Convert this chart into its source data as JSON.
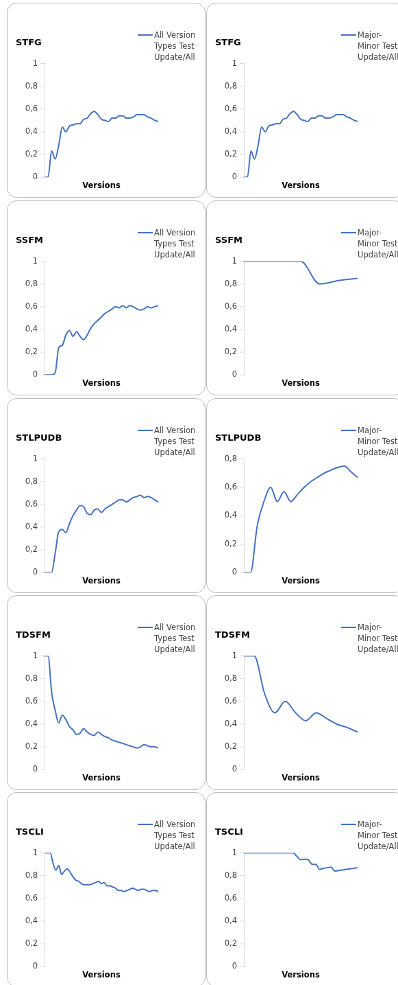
{
  "chart_data": [
    {
      "type": "line",
      "title": "STFG",
      "xlabel": "Versions",
      "legend": "top right",
      "marker": "none",
      "tick_labels": "y",
      "ylim": [
        0,
        1
      ],
      "yticks": [
        {
          "value": 0,
          "label": "0"
        },
        {
          "value": 0.2,
          "label": "0,2"
        },
        {
          "value": 0.4,
          "label": "0,4"
        },
        {
          "value": 0.6,
          "label": "0,6"
        },
        {
          "value": 0.8,
          "label": "0,8"
        },
        {
          "value": 1,
          "label": "1"
        }
      ],
      "categories": [
        null,
        null,
        null,
        null,
        null,
        null,
        null,
        null,
        null,
        null,
        null,
        null,
        null,
        null,
        null,
        null,
        null,
        null,
        null,
        null,
        null,
        null,
        null,
        null,
        null,
        null,
        null,
        null,
        null,
        null,
        null,
        null,
        null
      ],
      "series": [
        {
          "name": "All Version Types Test Update/All",
          "color": "#4472c4",
          "values": [
            0,
            0,
            0.23,
            0.16,
            0.28,
            0.44,
            0.4,
            0.45,
            0.46,
            0.47,
            0.47,
            0.51,
            0.52,
            0.56,
            0.58,
            0.55,
            0.51,
            0.5,
            0.49,
            0.52,
            0.52,
            0.54,
            0.54,
            0.52,
            0.52,
            0.53,
            0.55,
            0.55,
            0.55,
            0.53,
            0.52,
            0.5,
            0.49
          ]
        }
      ]
    },
    {
      "type": "line",
      "title": "STFG",
      "xlabel": "Versions",
      "legend": "top right",
      "marker": "none",
      "tick_labels": "y",
      "ylim": [
        0,
        1
      ],
      "yticks": [
        {
          "value": 0,
          "label": "0"
        },
        {
          "value": 0.2,
          "label": "0,2"
        },
        {
          "value": 0.4,
          "label": "0,4"
        },
        {
          "value": 0.6,
          "label": "0,6"
        },
        {
          "value": 0.8,
          "label": "0,8"
        },
        {
          "value": 1,
          "label": "1"
        }
      ],
      "categories": [
        null,
        null,
        null,
        null,
        null,
        null,
        null,
        null,
        null,
        null,
        null,
        null,
        null,
        null,
        null,
        null,
        null,
        null,
        null,
        null,
        null,
        null,
        null,
        null,
        null,
        null,
        null,
        null,
        null,
        null,
        null,
        null,
        null
      ],
      "series": [
        {
          "name": "Major-Minor Test Update/All",
          "color": "#4472c4",
          "values": [
            0,
            0,
            0.23,
            0.16,
            0.28,
            0.44,
            0.4,
            0.45,
            0.46,
            0.47,
            0.47,
            0.51,
            0.52,
            0.56,
            0.58,
            0.55,
            0.51,
            0.5,
            0.49,
            0.52,
            0.52,
            0.54,
            0.54,
            0.52,
            0.52,
            0.53,
            0.55,
            0.55,
            0.55,
            0.53,
            0.52,
            0.5,
            0.49
          ]
        }
      ]
    },
    {
      "type": "line",
      "title": "SSFM",
      "xlabel": "Versions",
      "legend": "top right",
      "marker": "none",
      "tick_labels": "y",
      "ylim": [
        0,
        1
      ],
      "yticks": [
        {
          "value": 0,
          "label": "0"
        },
        {
          "value": 0.2,
          "label": "0,2"
        },
        {
          "value": 0.4,
          "label": "0,4"
        },
        {
          "value": 0.6,
          "label": "0,6"
        },
        {
          "value": 0.8,
          "label": "0,8"
        },
        {
          "value": 1,
          "label": "1"
        }
      ],
      "categories": [
        null,
        null,
        null,
        null,
        null,
        null,
        null,
        null,
        null,
        null,
        null,
        null,
        null,
        null,
        null,
        null,
        null,
        null,
        null,
        null,
        null,
        null,
        null,
        null,
        null,
        null,
        null,
        null,
        null,
        null,
        null,
        null,
        null
      ],
      "series": [
        {
          "name": "All Version Types Test Update/All",
          "color": "#4472c4",
          "values": [
            0,
            0,
            0,
            0.02,
            0.24,
            0.26,
            0.35,
            0.39,
            0.34,
            0.38,
            0.34,
            0.31,
            0.35,
            0.41,
            0.45,
            0.48,
            0.51,
            0.54,
            0.56,
            0.58,
            0.6,
            0.59,
            0.61,
            0.59,
            0.61,
            0.6,
            0.58,
            0.57,
            0.58,
            0.6,
            0.59,
            0.6,
            0.61
          ]
        }
      ]
    },
    {
      "type": "line",
      "title": "SSFM",
      "xlabel": "Versions",
      "legend": "top right",
      "marker": "none",
      "tick_labels": "y",
      "ylim": [
        0,
        1
      ],
      "yticks": [
        {
          "value": 0,
          "label": "0"
        },
        {
          "value": 0.2,
          "label": "0,2"
        },
        {
          "value": 0.4,
          "label": "0,4"
        },
        {
          "value": 0.6,
          "label": "0,6"
        },
        {
          "value": 0.8,
          "label": "0,8"
        },
        {
          "value": 1,
          "label": "1"
        }
      ],
      "categories": [
        null,
        null,
        null,
        null,
        null,
        null,
        null
      ],
      "series": [
        {
          "name": "Major-Minor Test Update/All",
          "color": "#4472c4",
          "values": [
            1,
            1,
            1,
            1,
            0.8,
            0.83,
            0.85
          ]
        }
      ]
    },
    {
      "type": "line",
      "title": "STLPUDB",
      "xlabel": "Versions",
      "legend": "top right",
      "marker": "none",
      "tick_labels": "y",
      "ylim": [
        0,
        1
      ],
      "yticks": [
        {
          "value": 0,
          "label": "0"
        },
        {
          "value": 0.2,
          "label": "0,2"
        },
        {
          "value": 0.4,
          "label": "0,4"
        },
        {
          "value": 0.6,
          "label": "0,6"
        },
        {
          "value": 0.8,
          "label": "0,8"
        },
        {
          "value": 1,
          "label": "1"
        }
      ],
      "categories": [
        null,
        null,
        null,
        null,
        null,
        null,
        null,
        null,
        null,
        null,
        null,
        null,
        null,
        null,
        null,
        null,
        null,
        null,
        null,
        null,
        null,
        null,
        null,
        null,
        null,
        null,
        null,
        null,
        null,
        null,
        null,
        null,
        null
      ],
      "series": [
        {
          "name": "All Version Types Test Update/All",
          "color": "#4472c4",
          "values": [
            0,
            0,
            0,
            0.17,
            0.36,
            0.38,
            0.35,
            0.43,
            0.5,
            0.55,
            0.59,
            0.58,
            0.52,
            0.51,
            0.55,
            0.56,
            0.53,
            0.56,
            0.58,
            0.6,
            0.62,
            0.64,
            0.64,
            0.62,
            0.64,
            0.66,
            0.67,
            0.68,
            0.66,
            0.67,
            0.66,
            0.64,
            0.62
          ]
        }
      ]
    },
    {
      "type": "line",
      "title": "STLPUDB",
      "xlabel": "Versions",
      "legend": "top right",
      "marker": "none",
      "tick_labels": "y",
      "ylim": [
        0,
        0.8
      ],
      "yticks": [
        {
          "value": 0,
          "label": "0"
        },
        {
          "value": 0.2,
          "label": "0,2"
        },
        {
          "value": 0.4,
          "label": "0,4"
        },
        {
          "value": 0.6,
          "label": "0,6"
        },
        {
          "value": 0.8,
          "label": "0,8"
        }
      ],
      "categories": [
        null,
        null,
        null,
        null,
        null,
        null,
        null,
        null,
        null,
        null,
        null,
        null,
        null,
        null,
        null,
        null,
        null,
        null
      ],
      "series": [
        {
          "name": "Major-Minor Test Update/All",
          "color": "#4472c4",
          "values": [
            0,
            0,
            0.33,
            0.5,
            0.6,
            0.5,
            0.57,
            0.5,
            0.55,
            0.6,
            0.64,
            0.67,
            0.7,
            0.72,
            0.74,
            0.75,
            0.71,
            0.67
          ]
        }
      ]
    },
    {
      "type": "line",
      "title": "TDSFM",
      "xlabel": "Versions",
      "legend": "top right",
      "marker": "none",
      "tick_labels": "y",
      "ylim": [
        0,
        1
      ],
      "yticks": [
        {
          "value": 0,
          "label": "0"
        },
        {
          "value": 0.2,
          "label": "0,2"
        },
        {
          "value": 0.4,
          "label": "0,4"
        },
        {
          "value": 0.6,
          "label": "0,6"
        },
        {
          "value": 0.8,
          "label": "0,8"
        },
        {
          "value": 1,
          "label": "1"
        }
      ],
      "categories": [
        null,
        null,
        null,
        null,
        null,
        null,
        null,
        null,
        null,
        null,
        null,
        null,
        null,
        null,
        null,
        null,
        null,
        null,
        null,
        null,
        null,
        null,
        null,
        null,
        null,
        null,
        null,
        null,
        null,
        null,
        null,
        null,
        null
      ],
      "series": [
        {
          "name": "All Version Types Test Update/All",
          "color": "#4472c4",
          "values": [
            1,
            1,
            0.68,
            0.52,
            0.41,
            0.48,
            0.44,
            0.38,
            0.35,
            0.31,
            0.32,
            0.36,
            0.33,
            0.31,
            0.3,
            0.33,
            0.31,
            0.29,
            0.28,
            0.26,
            0.25,
            0.24,
            0.23,
            0.22,
            0.21,
            0.2,
            0.19,
            0.2,
            0.22,
            0.21,
            0.2,
            0.2,
            0.19
          ]
        }
      ]
    },
    {
      "type": "line",
      "title": "TDSFM",
      "xlabel": "Versions",
      "legend": "top right",
      "marker": "none",
      "tick_labels": "y",
      "ylim": [
        0,
        1
      ],
      "yticks": [
        {
          "value": 0,
          "label": "0"
        },
        {
          "value": 0.2,
          "label": "0,2"
        },
        {
          "value": 0.4,
          "label": "0,4"
        },
        {
          "value": 0.6,
          "label": "0,6"
        },
        {
          "value": 0.8,
          "label": "0,8"
        },
        {
          "value": 1,
          "label": "1"
        }
      ],
      "categories": [
        null,
        null,
        null,
        null,
        null,
        null,
        null,
        null,
        null,
        null,
        null,
        null
      ],
      "series": [
        {
          "name": "Major-Minor Test Update/All",
          "color": "#4472c4",
          "values": [
            1,
            1,
            0.67,
            0.5,
            0.6,
            0.5,
            0.43,
            0.5,
            0.45,
            0.4,
            0.37,
            0.33
          ]
        }
      ]
    },
    {
      "type": "line",
      "title": "TSCLI",
      "xlabel": "Versions",
      "legend": "top right",
      "marker": "none",
      "tick_labels": "y",
      "ylim": [
        0,
        1
      ],
      "yticks": [
        {
          "value": 0,
          "label": "0"
        },
        {
          "value": 0.2,
          "label": "0,2"
        },
        {
          "value": 0.4,
          "label": "0,4"
        },
        {
          "value": 0.6,
          "label": "0,6"
        },
        {
          "value": 0.8,
          "label": "0,8"
        },
        {
          "value": 1,
          "label": "1"
        }
      ],
      "categories": [
        null,
        null,
        null,
        null,
        null,
        null,
        null,
        null,
        null,
        null,
        null,
        null,
        null,
        null,
        null,
        null,
        null,
        null,
        null,
        null,
        null,
        null,
        null,
        null,
        null,
        null,
        null,
        null,
        null,
        null,
        null,
        null,
        null,
        null,
        null,
        null,
        null,
        null,
        null,
        null,
        null
      ],
      "series": [
        {
          "name": "All Version Types Test Update/All",
          "color": "#4472c4",
          "values": [
            1,
            1,
            1,
            0.91,
            0.85,
            0.89,
            0.81,
            0.84,
            0.86,
            0.83,
            0.79,
            0.76,
            0.75,
            0.73,
            0.72,
            0.72,
            0.72,
            0.73,
            0.74,
            0.75,
            0.73,
            0.74,
            0.71,
            0.71,
            0.7,
            0.69,
            0.67,
            0.67,
            0.66,
            0.67,
            0.68,
            0.69,
            0.68,
            0.67,
            0.68,
            0.68,
            0.67,
            0.66,
            0.67,
            0.67,
            0.66
          ]
        }
      ]
    },
    {
      "type": "line",
      "title": "TSCLI",
      "xlabel": "Versions",
      "legend": "top right",
      "marker": "none",
      "tick_labels": "y",
      "ylim": [
        0,
        1
      ],
      "yticks": [
        {
          "value": 0,
          "label": "0"
        },
        {
          "value": 0.2,
          "label": "0,2"
        },
        {
          "value": 0.4,
          "label": "0,4"
        },
        {
          "value": 0.6,
          "label": "0,6"
        },
        {
          "value": 0.8,
          "label": "0,8"
        },
        {
          "value": 1,
          "label": "1"
        }
      ],
      "categories": [
        null,
        null,
        null,
        null,
        null,
        null,
        null,
        null,
        null,
        null,
        null,
        null,
        null,
        null,
        null,
        null,
        null,
        null,
        null,
        null,
        null,
        null,
        null,
        null,
        null,
        null,
        null,
        null,
        null,
        null,
        null
      ],
      "series": [
        {
          "name": "Major-Minor Test Update/All",
          "color": "#4472c4",
          "values": [
            1,
            1,
            1,
            1,
            1,
            1,
            1,
            1,
            1,
            1,
            1,
            1,
            1,
            1,
            0.97,
            0.94,
            0.945,
            0.94,
            0.9,
            0.9,
            0.855,
            0.865,
            0.87,
            0.875,
            0.84,
            0.845,
            0.85,
            0.855,
            0.86,
            0.865,
            0.87
          ]
        }
      ]
    }
  ]
}
